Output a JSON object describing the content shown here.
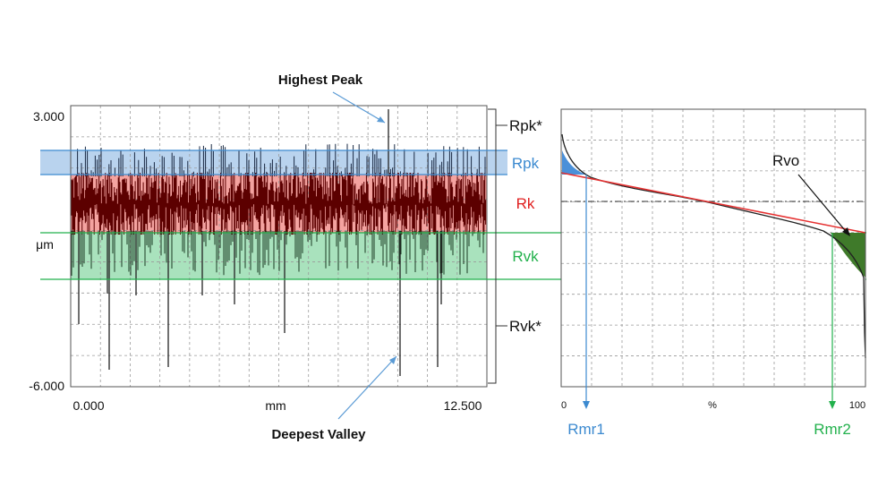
{
  "annotations": {
    "highest_peak": "Highest Peak",
    "deepest_valley": "Deepest Valley"
  },
  "profile_plot": {
    "y_tick_top": "3.000",
    "y_tick_bottom": "-6.000",
    "y_unit": "μm",
    "x_tick_left": "0.000",
    "x_tick_right": "12.500",
    "x_unit": "mm",
    "zones": {
      "rpk_star": "Rpk*",
      "rpk": "Rpk",
      "rk": "Rk",
      "rvk": "Rvk",
      "rvk_star": "Rvk*"
    }
  },
  "bearing_plot": {
    "x_tick_left": "0",
    "x_tick_right": "100",
    "x_unit": "%",
    "rvo_label": "Rvo",
    "rmr1_label": "Rmr1",
    "rmr2_label": "Rmr2"
  },
  "colors": {
    "rpk_band": "#b9d3ee",
    "rk_band": "#f4a3a0",
    "rvk_band": "#a9e2bd",
    "rpk_text": "#3c8ad0",
    "rk_text": "#e02020",
    "rvk_text": "#22b14c",
    "rk_profile": "#5c0000",
    "tangent_line": "#e53030",
    "rvo_fill": "#3f7a2a",
    "rpk_fill": "#4a90d9"
  },
  "chart_data": [
    {
      "type": "line",
      "xlabel": "mm",
      "ylabel": "μm",
      "xlim": [
        0,
        12.5
      ],
      "ylim": [
        -6,
        3
      ],
      "rpk_star_range": [
        1.25,
        3.0
      ],
      "rpk_range": [
        1.15,
        2.0
      ],
      "rk_range": [
        -0.65,
        1.15
      ],
      "rvk_range": [
        -2.2,
        -0.65
      ],
      "rvk_star_range": [
        -5.6,
        -0.65
      ],
      "highest_peak": {
        "x": 9.8,
        "y": 2.9
      },
      "deepest_valley": {
        "x": 10.0,
        "y": -5.6
      },
      "grid": true
    },
    {
      "type": "line",
      "xlabel": "%",
      "xlim": [
        0,
        100
      ],
      "ylim": [
        -6,
        3
      ],
      "rmr1": 8,
      "rmr2": 91,
      "grid": true
    }
  ]
}
